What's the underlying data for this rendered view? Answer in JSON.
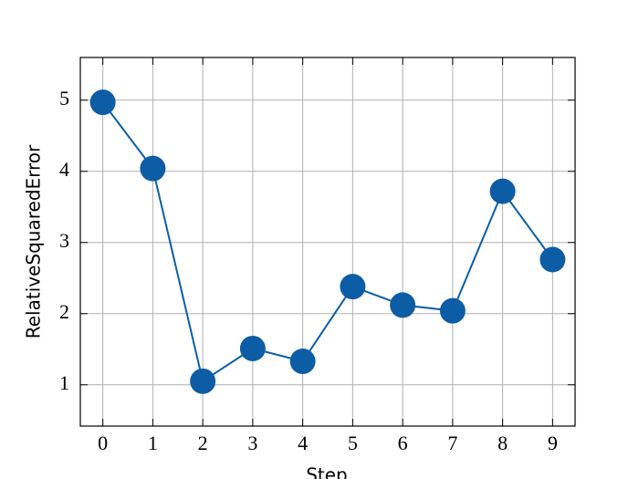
{
  "chart_data": {
    "type": "line",
    "xlabel": "Step",
    "ylabel": "RelativeSquaredError",
    "x": [
      0,
      1,
      2,
      3,
      4,
      5,
      6,
      7,
      8,
      9
    ],
    "series": [
      {
        "color": "#0c5da5",
        "values": [
          4.97,
          4.04,
          1.05,
          1.51,
          1.33,
          2.38,
          2.12,
          2.04,
          3.72,
          2.76
        ]
      }
    ],
    "xlim": [
      -0.45,
      9.45
    ],
    "xticks": [
      0,
      1,
      2,
      3,
      4,
      5,
      6,
      7,
      8,
      9
    ],
    "ylim": [
      0.42,
      5.6
    ],
    "yticks": [
      1,
      2,
      3,
      4,
      5
    ],
    "grid": true
  }
}
